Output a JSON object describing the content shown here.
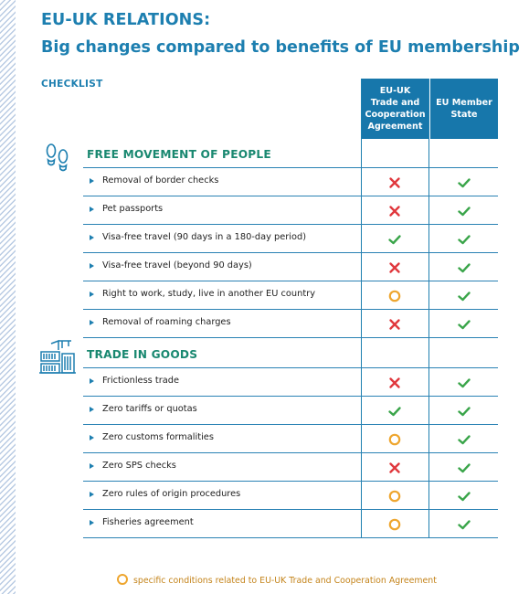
{
  "header": {
    "title": "EU-UK RELATIONS:",
    "subtitle": "Big changes compared to benefits of EU membership",
    "checklist_label": "CHECKLIST"
  },
  "columns": [
    {
      "label_lines": [
        "EU-UK",
        "Trade and",
        "Cooperation",
        "Agreement"
      ]
    },
    {
      "label_lines": [
        "EU Member",
        "State"
      ]
    }
  ],
  "sections": [
    {
      "title": "FREE MOVEMENT OF PEOPLE",
      "icon": "footprints-icon",
      "rows": [
        {
          "label": "Removal of border checks",
          "tca": "cross",
          "eu": "check"
        },
        {
          "label": "Pet passports",
          "tca": "cross",
          "eu": "check"
        },
        {
          "label": "Visa-free travel (90 days in a 180-day period)",
          "tca": "check",
          "eu": "check"
        },
        {
          "label": "Visa-free travel (beyond 90 days)",
          "tca": "cross",
          "eu": "check"
        },
        {
          "label": "Right to work, study, live in another EU country",
          "tca": "circle",
          "eu": "check"
        },
        {
          "label": "Removal of roaming charges",
          "tca": "cross",
          "eu": "check"
        }
      ]
    },
    {
      "title": "TRADE IN GOODS",
      "icon": "cargo-crane-icon",
      "rows": [
        {
          "label": "Frictionless trade",
          "tca": "cross",
          "eu": "check"
        },
        {
          "label": "Zero tariffs or quotas",
          "tca": "check",
          "eu": "check"
        },
        {
          "label": "Zero customs formalities",
          "tca": "circle",
          "eu": "check"
        },
        {
          "label": "Zero SPS checks",
          "tca": "cross",
          "eu": "check"
        },
        {
          "label": "Zero rules of origin procedures",
          "tca": "circle",
          "eu": "check"
        },
        {
          "label": "Fisheries agreement",
          "tca": "circle",
          "eu": "check"
        }
      ]
    }
  ],
  "footnote": "specific conditions related to EU-UK Trade and Cooperation Agreement",
  "colors": {
    "heading_blue": "#1d7fb0",
    "header_fill": "#1777ab",
    "section_green": "#198870",
    "check_green": "#3aa54a",
    "cross_red": "#e0383d",
    "circle_orange": "#eea62f"
  }
}
